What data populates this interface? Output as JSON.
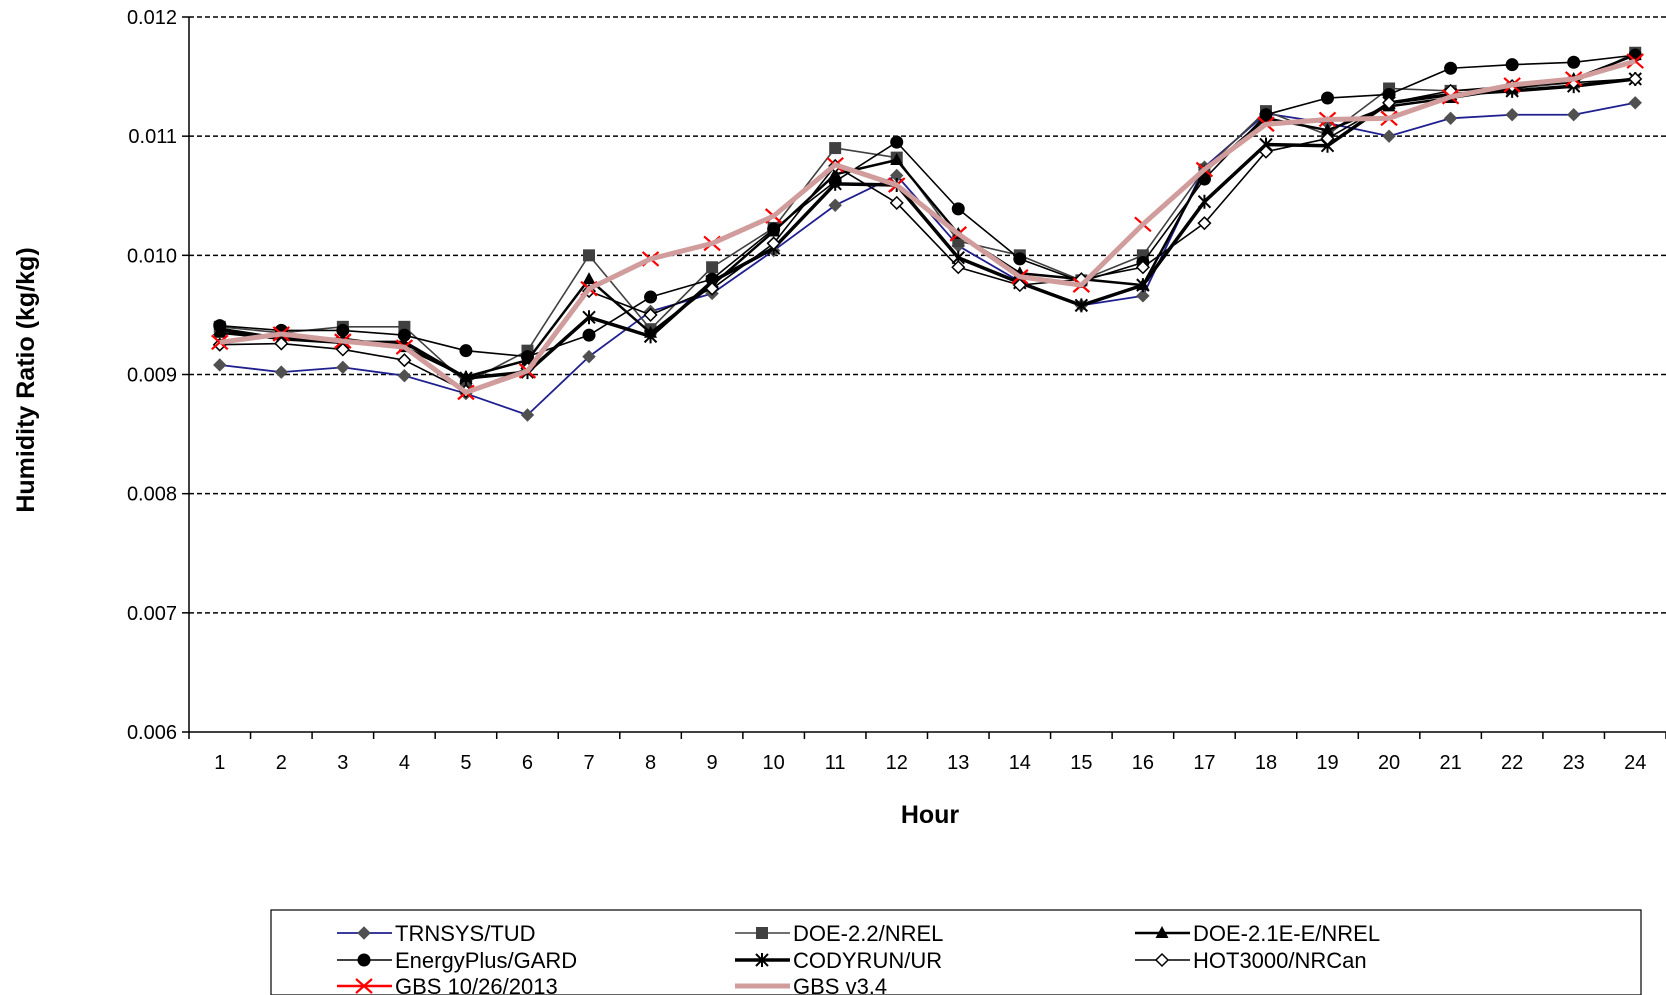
{
  "chart_data": {
    "type": "line",
    "title": "",
    "xlabel": "Hour",
    "ylabel": "Humidity Ratio (kg/kg)",
    "ylim": [
      0.006,
      0.012
    ],
    "yticks": [
      "0.006",
      "0.007",
      "0.008",
      "0.009",
      "0.010",
      "0.011",
      "0.012"
    ],
    "ytick_values": [
      0.006,
      0.007,
      0.008,
      0.009,
      0.01,
      0.011,
      0.012
    ],
    "grid": "horizontal dashed",
    "legend_placement": "bottom",
    "categories": [
      "1",
      "2",
      "3",
      "4",
      "5",
      "6",
      "7",
      "8",
      "9",
      "10",
      "11",
      "12",
      "13",
      "14",
      "15",
      "16",
      "17",
      "18",
      "19",
      "20",
      "21",
      "22",
      "23",
      "24"
    ],
    "series": [
      {
        "name": "TRNSYS/TUD",
        "color": "#1f1f8f",
        "marker": "diamond",
        "values": [
          0.00908,
          0.00902,
          0.00906,
          0.00899,
          0.00884,
          0.00866,
          0.00915,
          0.00953,
          0.00968,
          0.01004,
          0.01042,
          0.01067,
          0.01008,
          0.00978,
          0.00958,
          0.00966,
          0.01074,
          0.01119,
          0.01111,
          0.011,
          0.01115,
          0.01118,
          0.01118,
          0.01128
        ]
      },
      {
        "name": "DOE-2.2/NREL",
        "color": "#404040",
        "marker": "square",
        "values": [
          0.0094,
          0.00935,
          0.0094,
          0.0094,
          0.00893,
          0.0092,
          0.01,
          0.00938,
          0.0099,
          0.01023,
          0.0109,
          0.01082,
          0.01012,
          0.01,
          0.00979,
          0.01,
          0.01072,
          0.01121,
          0.01101,
          0.0114,
          0.01138,
          0.0114,
          0.01145,
          0.0117
        ]
      },
      {
        "name": "DOE-2.1E-E/NREL",
        "color": "#000000",
        "marker": "triangle",
        "values": [
          0.00935,
          0.0093,
          0.0093,
          0.00923,
          0.00898,
          0.00912,
          0.0098,
          0.00935,
          0.00975,
          0.0102,
          0.01068,
          0.0108,
          0.01018,
          0.00985,
          0.0098,
          0.00975,
          0.0107,
          0.01115,
          0.01105,
          0.01125,
          0.01132,
          0.0114,
          0.01148,
          0.01168
        ]
      },
      {
        "name": "EnergyPlus/GARD",
        "color": "#000000",
        "marker": "circle",
        "values": [
          0.00941,
          0.00937,
          0.00937,
          0.00933,
          0.0092,
          0.00915,
          0.00933,
          0.00965,
          0.0098,
          0.01022,
          0.01062,
          0.01095,
          0.01039,
          0.00997,
          0.00978,
          0.00994,
          0.01064,
          0.01118,
          0.01132,
          0.01135,
          0.01157,
          0.0116,
          0.01162,
          0.01168
        ]
      },
      {
        "name": "CODYRUN/UR",
        "color": "#000000",
        "marker": "asterisk",
        "values": [
          0.00938,
          0.0093,
          0.00927,
          0.00927,
          0.00897,
          0.00902,
          0.00948,
          0.00932,
          0.00978,
          0.01006,
          0.0106,
          0.01059,
          0.00998,
          0.00977,
          0.00958,
          0.00975,
          0.01045,
          0.01093,
          0.01092,
          0.01128,
          0.01135,
          0.01138,
          0.01142,
          0.01148
        ]
      },
      {
        "name": "HOT3000/NRCan",
        "color": "#000000",
        "marker": "diamond-open",
        "values": [
          0.00925,
          0.00926,
          0.00921,
          0.00912,
          0.00886,
          0.00905,
          0.0097,
          0.0095,
          0.00972,
          0.0101,
          0.01075,
          0.01044,
          0.0099,
          0.00975,
          0.0098,
          0.0099,
          0.01027,
          0.01087,
          0.01098,
          0.01128,
          0.01138,
          0.01142,
          0.01145,
          0.01148
        ]
      },
      {
        "name": "GBS 10/26/2013",
        "color": "#ff0000",
        "marker": "x",
        "values": [
          0.00927,
          0.00934,
          0.00928,
          0.00923,
          0.00885,
          0.00903,
          0.00972,
          0.00997,
          0.0101,
          0.01033,
          0.01076,
          0.01059,
          0.01018,
          0.00982,
          0.00975,
          0.01026,
          0.01072,
          0.0111,
          0.01114,
          0.01115,
          0.01133,
          0.01143,
          0.01148,
          0.01163
        ]
      },
      {
        "name": "GBS v3.4",
        "color": "#d09c9c",
        "marker": "none",
        "values": [
          0.00927,
          0.00934,
          0.00928,
          0.00923,
          0.00885,
          0.00903,
          0.00972,
          0.00997,
          0.0101,
          0.01033,
          0.01076,
          0.01059,
          0.01018,
          0.00982,
          0.00975,
          0.01026,
          0.01072,
          0.0111,
          0.01114,
          0.01115,
          0.01133,
          0.01143,
          0.01148,
          0.01163
        ]
      }
    ]
  }
}
